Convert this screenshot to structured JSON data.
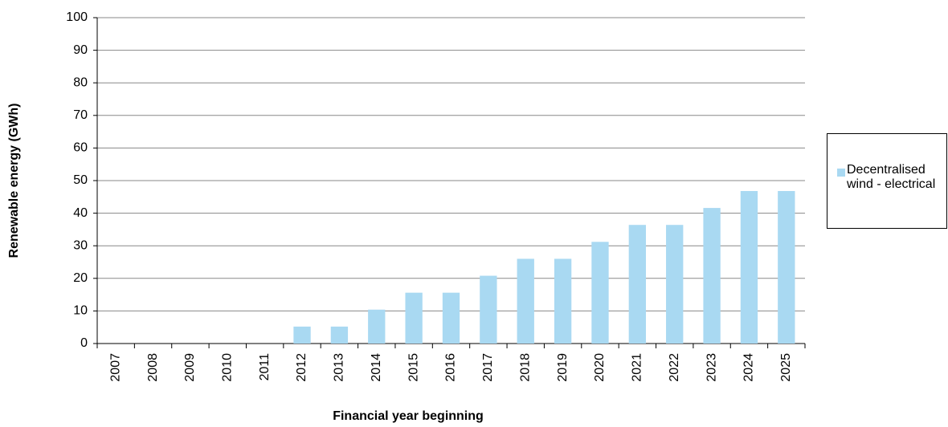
{
  "chart_data": {
    "type": "bar",
    "xlabel": "Financial year beginning",
    "ylabel": "Renewable energy (GWh)",
    "categories": [
      "2007",
      "2008",
      "2009",
      "2010",
      "2011",
      "2012",
      "2013",
      "2014",
      "2015",
      "2016",
      "2017",
      "2018",
      "2019",
      "2020",
      "2021",
      "2022",
      "2023",
      "2024",
      "2025"
    ],
    "series": [
      {
        "name": "Decentralised wind - electrical",
        "color": "#a9d9f2",
        "values": [
          0,
          0,
          0,
          0,
          0,
          5.2,
          5.2,
          10.4,
          15.6,
          15.6,
          20.8,
          26,
          26,
          31.2,
          36.4,
          36.4,
          41.6,
          46.8,
          46.8
        ]
      }
    ],
    "ylim": [
      0,
      100
    ],
    "yticks": [
      0,
      10,
      20,
      30,
      40,
      50,
      60,
      70,
      80,
      90,
      100
    ],
    "grid": true,
    "legend": "right"
  }
}
